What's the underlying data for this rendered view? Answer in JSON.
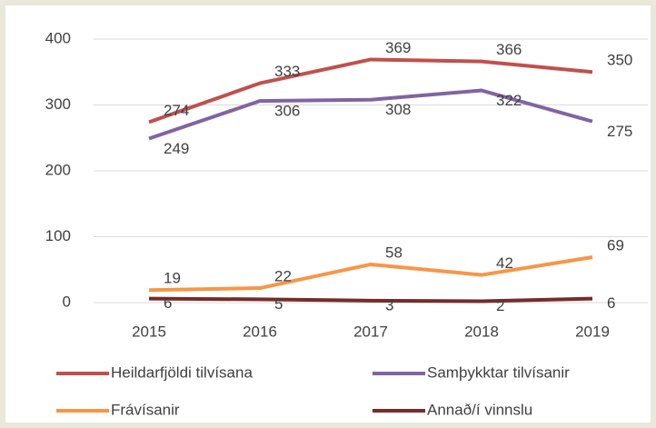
{
  "chart_data": {
    "type": "line",
    "categories": [
      "2015",
      "2016",
      "2017",
      "2018",
      "2019"
    ],
    "series": [
      {
        "name": "Heildarfjöldi tilvísana",
        "color": "#c0504d",
        "values": [
          274,
          333,
          369,
          366,
          350
        ]
      },
      {
        "name": "Samþykktar tilvísanir",
        "color": "#8064a2",
        "values": [
          249,
          306,
          308,
          322,
          275
        ]
      },
      {
        "name": "Frávísanir",
        "color": "#f79646",
        "values": [
          19,
          22,
          58,
          42,
          69
        ]
      },
      {
        "name": "Annað/í vinnslu",
        "color": "#772c2a",
        "values": [
          6,
          5,
          3,
          2,
          6
        ]
      }
    ],
    "ylim": [
      0,
      400
    ],
    "yticks": [
      0,
      100,
      200,
      300,
      400
    ],
    "grid": true,
    "legend": "bottom"
  }
}
